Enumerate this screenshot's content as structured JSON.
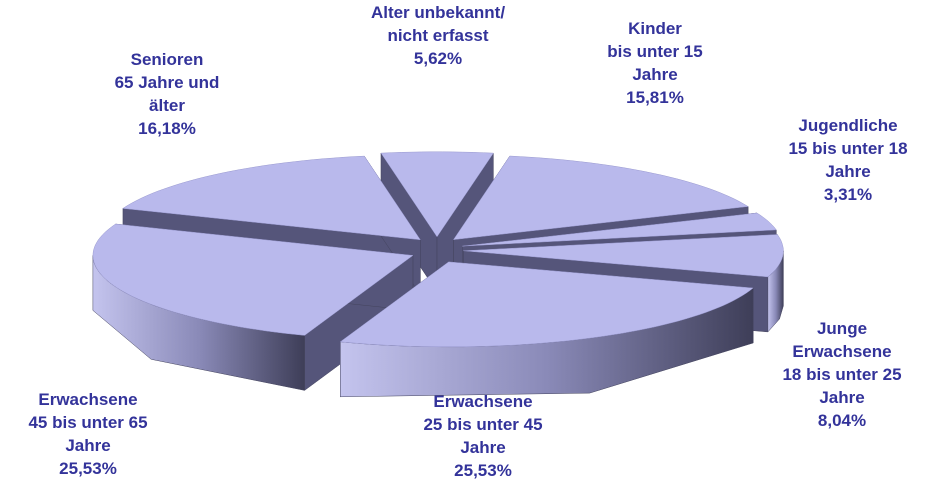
{
  "chart_data": {
    "type": "pie3d",
    "categories": [
      [
        "Alter unbekannt/",
        "nicht erfasst"
      ],
      [
        "Kinder",
        "bis unter 15",
        "Jahre"
      ],
      [
        "Jugendliche",
        "15 bis unter 18",
        "Jahre"
      ],
      [
        "Junge",
        "Erwachsene",
        "18 bis unter 25",
        "Jahre"
      ],
      [
        "Erwachsene",
        "25 bis unter 45",
        "Jahre"
      ],
      [
        "Erwachsene",
        "45 bis unter 65",
        "Jahre"
      ],
      [
        "Senioren",
        "65 Jahre und",
        "älter"
      ]
    ],
    "values": [
      5.62,
      15.81,
      3.31,
      8.04,
      25.53,
      25.53,
      16.18
    ],
    "value_labels": [
      "5,62%",
      "15,81%",
      "3,31%",
      "8,04%",
      "25,53%",
      "25,53%",
      "16,18%"
    ],
    "color": "#b9b9ec",
    "label_color": "#33339a"
  }
}
